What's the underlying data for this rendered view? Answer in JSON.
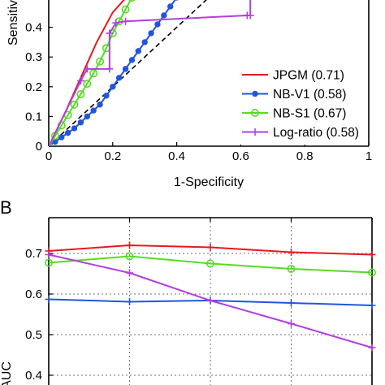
{
  "panels": [
    {
      "letter": "",
      "chart_data": {
        "type": "line",
        "xlabel": "1-Specificity",
        "ylabel": "Sensitivity",
        "xlim": [
          0,
          1
        ],
        "ylim": [
          0,
          0.5
        ],
        "x_ticks": [
          "0",
          "0.2",
          "0.4",
          "0.6",
          "0.8",
          "1"
        ],
        "y_ticks": [
          "0",
          "0.1",
          "0.2",
          "0.3",
          "0.4"
        ],
        "grid": false,
        "legend_position": "bottom-right",
        "diagonal": {
          "style": "dashed",
          "color": "#000000",
          "x": [
            0,
            1
          ],
          "y": [
            0,
            1
          ]
        },
        "series": [
          {
            "name": "JPGM (0.71)",
            "color": "#e41a1c",
            "marker": "none",
            "x": [
              0,
              0.05,
              0.1,
              0.15,
              0.2,
              0.25,
              0.3
            ],
            "y": [
              0,
              0.11,
              0.23,
              0.35,
              0.45,
              0.51,
              0.57
            ]
          },
          {
            "name": "NB-V1 (0.58)",
            "color": "#2255dd",
            "marker": "dot",
            "x": [
              0,
              0.02,
              0.04,
              0.06,
              0.08,
              0.1,
              0.12,
              0.14,
              0.16,
              0.18,
              0.2,
              0.22,
              0.24,
              0.26,
              0.28,
              0.3,
              0.32,
              0.34,
              0.36,
              0.38,
              0.4
            ],
            "y": [
              0,
              0.015,
              0.03,
              0.045,
              0.06,
              0.08,
              0.1,
              0.12,
              0.14,
              0.17,
              0.2,
              0.23,
              0.26,
              0.29,
              0.32,
              0.35,
              0.38,
              0.41,
              0.44,
              0.47,
              0.5
            ]
          },
          {
            "name": "NB-S1 (0.67)",
            "color": "#55dd22",
            "marker": "circle",
            "x": [
              0,
              0.02,
              0.04,
              0.06,
              0.08,
              0.1,
              0.12,
              0.14,
              0.16,
              0.18,
              0.2,
              0.22,
              0.24,
              0.26
            ],
            "y": [
              0,
              0.035,
              0.07,
              0.105,
              0.14,
              0.175,
              0.21,
              0.245,
              0.285,
              0.33,
              0.38,
              0.42,
              0.46,
              0.5
            ]
          },
          {
            "name": "Log-ratio (0.58)",
            "color": "#b23fe0",
            "marker": "plus",
            "x": [
              0,
              0.1,
              0.12,
              0.19,
              0.19,
              0.21,
              0.24,
              0.62,
              0.63,
              0.63
            ],
            "y": [
              0,
              0.22,
              0.26,
              0.26,
              0.38,
              0.415,
              0.42,
              0.44,
              0.44,
              0.5
            ]
          }
        ]
      }
    },
    {
      "letter": "B",
      "chart_data": {
        "type": "line",
        "xlabel": "",
        "ylabel": "AUC",
        "ylim": [
          0.35,
          0.75
        ],
        "y_ticks": [
          "0.4",
          "0.5",
          "0.6",
          "0.7"
        ],
        "x": [
          1,
          2,
          3,
          4,
          5
        ],
        "grid": true,
        "series": [
          {
            "name": "JPGM",
            "color": "#e41a1c",
            "marker": "plus",
            "values": [
              0.706,
              0.72,
              0.715,
              0.703,
              0.697
            ]
          },
          {
            "name": "NB-S1",
            "color": "#55dd22",
            "marker": "circle",
            "values": [
              0.677,
              0.693,
              0.675,
              0.662,
              0.653
            ]
          },
          {
            "name": "NB-V1",
            "color": "#2255dd",
            "marker": "plus",
            "values": [
              0.587,
              0.581,
              0.584,
              0.578,
              0.572
            ]
          },
          {
            "name": "Log-ratio",
            "color": "#b23fe0",
            "marker": "plus",
            "values": [
              0.697,
              0.652,
              0.584,
              0.527,
              0.468
            ]
          }
        ]
      }
    }
  ]
}
